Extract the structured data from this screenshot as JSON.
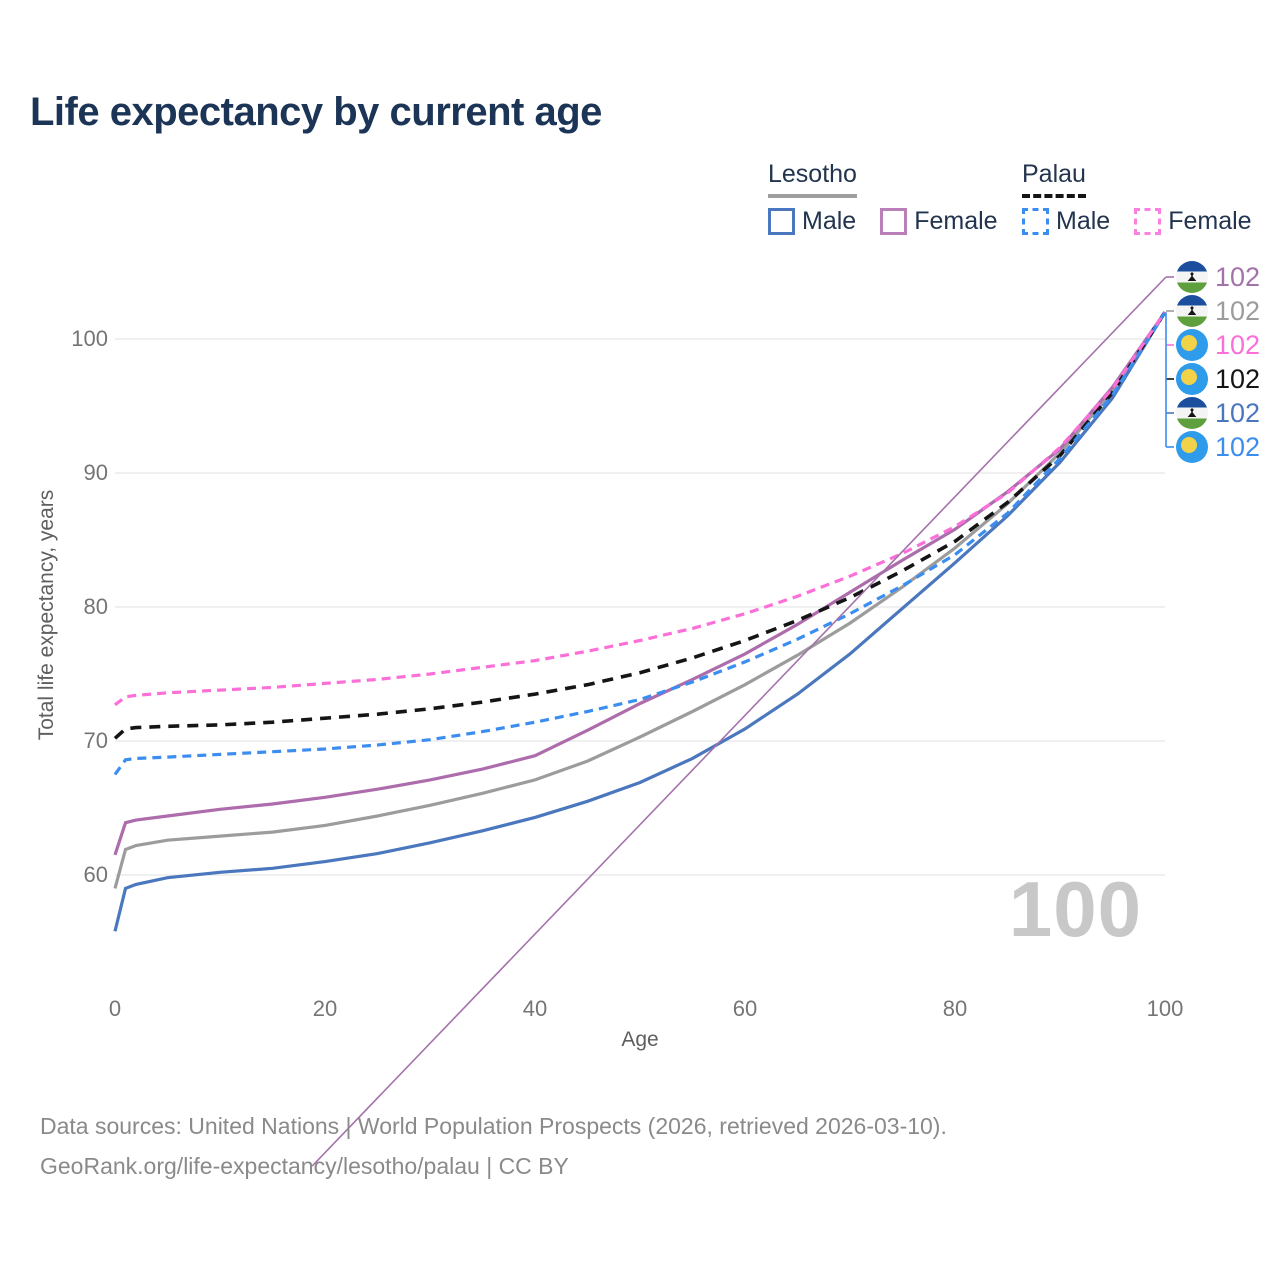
{
  "title": "Life expectancy by current age",
  "legend": {
    "groups": [
      {
        "country": "Lesotho",
        "line_style": "solid",
        "underline_color": "#9e9e9e",
        "items": [
          {
            "label": "Male",
            "color": "#4a77bd"
          },
          {
            "label": "Female",
            "color": "#b87fb8"
          }
        ]
      },
      {
        "country": "Palau",
        "line_style": "dashed",
        "underline_color": "#151515",
        "items": [
          {
            "label": "Male",
            "color": "#3b8ef0"
          },
          {
            "label": "Female",
            "color": "#fb80e0"
          }
        ]
      }
    ]
  },
  "y_axis": {
    "label": "Total life expectancy, years",
    "ticks": [
      100,
      90,
      80,
      70,
      60
    ]
  },
  "x_axis": {
    "label": "Age",
    "ticks": [
      0,
      20,
      40,
      60,
      80,
      100
    ]
  },
  "end_labels": [
    {
      "flag": "lesotho",
      "series": "Lesotho Female",
      "value": "102",
      "color": "#a472aa"
    },
    {
      "flag": "lesotho",
      "series": "Lesotho",
      "value": "102",
      "color": "#9c9c9c"
    },
    {
      "flag": "palau",
      "series": "Palau Female",
      "value": "102",
      "color": "#fb6fd9"
    },
    {
      "flag": "palau",
      "series": "Palau",
      "value": "102",
      "color": "#151515"
    },
    {
      "flag": "lesotho",
      "series": "Lesotho Male",
      "value": "102",
      "color": "#4a77bd"
    },
    {
      "flag": "palau",
      "series": "Palau Male",
      "value": "102",
      "color": "#3b8ef0"
    }
  ],
  "watermark": "100",
  "footer": {
    "line1": "Data sources: United Nations | World Population Prospects (2026, retrieved 2026-03-10).",
    "line2": "GeoRank.org/life-expectancy/lesotho/palau | CC BY"
  },
  "chart_data": {
    "type": "line",
    "title": "Life expectancy by current age",
    "xlabel": "Age",
    "ylabel": "Total life expectancy, years",
    "xlim": [
      0,
      100
    ],
    "ylim": [
      55,
      103
    ],
    "x_ticks": [
      0,
      20,
      40,
      60,
      80,
      100
    ],
    "y_ticks": [
      60,
      70,
      80,
      90,
      100
    ],
    "grid": "horizontal",
    "legend_position": "top-right",
    "x": [
      0,
      1,
      2,
      5,
      10,
      15,
      20,
      25,
      30,
      35,
      40,
      45,
      50,
      55,
      60,
      65,
      70,
      75,
      80,
      85,
      90,
      95,
      100
    ],
    "series": [
      {
        "id": "lesotho-both",
        "name": "Lesotho (both sexes)",
        "country": "Lesotho",
        "sex": "both",
        "dash": "solid",
        "color": "#9c9c9c",
        "values": [
          59.0,
          61.9,
          62.2,
          62.6,
          62.9,
          63.2,
          63.7,
          64.4,
          65.2,
          66.1,
          67.1,
          68.5,
          70.3,
          72.2,
          74.2,
          76.4,
          78.8,
          81.5,
          84.4,
          87.7,
          91.5,
          96.1,
          102
        ]
      },
      {
        "id": "lesotho-female",
        "name": "Lesotho Female",
        "country": "Lesotho",
        "sex": "female",
        "dash": "solid",
        "color": "#ad6cac",
        "values": [
          61.5,
          63.9,
          64.1,
          64.4,
          64.9,
          65.3,
          65.8,
          66.4,
          67.1,
          67.9,
          68.9,
          70.8,
          72.8,
          74.6,
          76.5,
          78.7,
          81.1,
          83.5,
          85.8,
          88.6,
          91.8,
          96.4,
          102
        ]
      },
      {
        "id": "lesotho-male",
        "name": "Lesotho Male",
        "country": "Lesotho",
        "sex": "male",
        "dash": "solid",
        "color": "#4a77bd",
        "values": [
          55.8,
          59.0,
          59.3,
          59.8,
          60.2,
          60.5,
          61.0,
          61.6,
          62.4,
          63.3,
          64.3,
          65.5,
          66.9,
          68.7,
          70.9,
          73.5,
          76.5,
          79.9,
          83.3,
          86.8,
          90.8,
          95.6,
          102
        ]
      },
      {
        "id": "palau-both",
        "name": "Palau (both sexes)",
        "country": "Palau",
        "sex": "both",
        "dash": "dashed",
        "color": "#151515",
        "values": [
          70.2,
          70.9,
          71.0,
          71.1,
          71.2,
          71.4,
          71.7,
          72.0,
          72.4,
          72.9,
          73.5,
          74.2,
          75.1,
          76.2,
          77.5,
          79.0,
          80.7,
          82.7,
          84.9,
          87.8,
          91.3,
          96.0,
          102
        ]
      },
      {
        "id": "palau-male",
        "name": "Palau Male",
        "country": "Palau",
        "sex": "male",
        "dash": "dashed",
        "color": "#3b8ef0",
        "values": [
          67.5,
          68.6,
          68.7,
          68.8,
          69.0,
          69.2,
          69.4,
          69.7,
          70.1,
          70.7,
          71.4,
          72.2,
          73.1,
          74.4,
          75.9,
          77.6,
          79.5,
          81.6,
          83.9,
          87.0,
          91.1,
          95.8,
          102
        ]
      },
      {
        "id": "palau-female",
        "name": "Palau Female",
        "country": "Palau",
        "sex": "female",
        "dash": "dashed",
        "color": "#fb6fd9",
        "values": [
          72.7,
          73.3,
          73.4,
          73.6,
          73.8,
          74.0,
          74.3,
          74.6,
          75.0,
          75.5,
          76.0,
          76.7,
          77.5,
          78.4,
          79.5,
          80.8,
          82.3,
          84.0,
          86.0,
          88.5,
          91.9,
          96.3,
          102
        ]
      }
    ]
  }
}
